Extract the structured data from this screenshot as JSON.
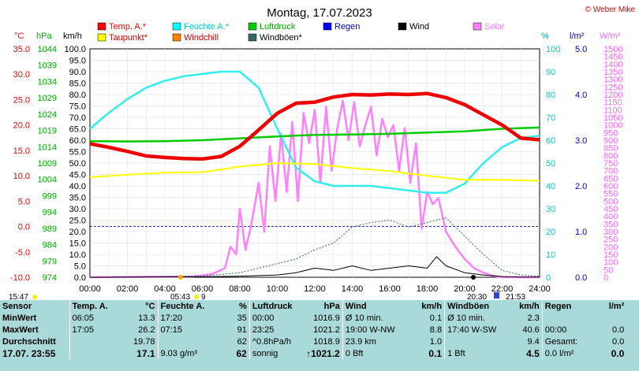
{
  "chart_data": {
    "type": "line",
    "title": "Montag, 17.07.2023",
    "credit": "© Weber Mike",
    "x_ticks": [
      "00:00",
      "02:00",
      "04:00",
      "06:00",
      "08:00",
      "10:00",
      "12:00",
      "14:00",
      "16:00",
      "18:00",
      "20:00",
      "22:00",
      "24:00"
    ],
    "axes": {
      "temp": {
        "label": "°C",
        "range": [
          -10,
          35
        ],
        "ticks": [
          "35.0",
          "30.0",
          "25.0",
          "20.0",
          "15.0",
          "10.0",
          "5.0",
          "0.0",
          "-5.0",
          "-10.0"
        ],
        "color": "#ff0000"
      },
      "pressure": {
        "label": "hPa",
        "range": [
          974,
          1046
        ],
        "ticks": [
          "1044",
          "1039",
          "1034",
          "1029",
          "1024",
          "1019",
          "1014",
          "1009",
          "1004",
          "999",
          "994",
          "989",
          "984",
          "979",
          "974"
        ],
        "color": "#00aa00"
      },
      "wind": {
        "label": "km/h",
        "range": [
          0,
          100
        ],
        "ticks": [
          "100.0",
          "95.0",
          "90.0",
          "85.0",
          "80.0",
          "75.0",
          "70.0",
          "65.0",
          "60.0",
          "55.0",
          "50.0",
          "45.0",
          "40.0",
          "35.0",
          "30.0",
          "25.0",
          "20.0",
          "15.0",
          "10.0",
          "5.0",
          "0.0"
        ],
        "color": "#000000"
      },
      "humidity": {
        "label": "%",
        "range": [
          0,
          100
        ],
        "ticks": [
          "100",
          "90",
          "80",
          "70",
          "60",
          "50",
          "40",
          "30",
          "20",
          "10",
          "0"
        ],
        "color": "#00cccc"
      },
      "rain": {
        "label": "l/m²",
        "range": [
          0,
          5
        ],
        "ticks": [
          "5.0",
          "4.0",
          "3.0",
          "2.0",
          "1.0",
          "0.0"
        ],
        "color": "#0000cc"
      },
      "solar": {
        "label": "W/m²",
        "range": [
          0,
          1500
        ],
        "ticks": [
          "1500",
          "1450",
          "1400",
          "1350",
          "1300",
          "1250",
          "1200",
          "1150",
          "1100",
          "1050",
          "1000",
          "950",
          "900",
          "850",
          "800",
          "750",
          "700",
          "650",
          "600",
          "550",
          "500",
          "450",
          "400",
          "350",
          "300",
          "250",
          "200",
          "150",
          "100",
          "50",
          "0"
        ],
        "color": "#ff66ff"
      }
    },
    "legend": [
      {
        "name": "Temp. A.*",
        "color": "#ff0000"
      },
      {
        "name": "Feuchte A.*",
        "color": "#00ffff"
      },
      {
        "name": "Luftdruck",
        "color": "#00cc00"
      },
      {
        "name": "Regen",
        "color": "#0000ff"
      },
      {
        "name": "Wind",
        "color": "#000000"
      },
      {
        "name": "Solar",
        "color": "#ff80ff"
      },
      {
        "name": "Taupunkt*",
        "color": "#ffff00"
      },
      {
        "name": "Windchill",
        "color": "#ff8000"
      },
      {
        "name": "Windböen*",
        "color": "#336666"
      }
    ],
    "series": [
      {
        "name": "Temp. A.*",
        "axis": "temp",
        "color": "#ee0000",
        "x": [
          0,
          1,
          2,
          3,
          4,
          5,
          6,
          7,
          8,
          9,
          10,
          11,
          12,
          13,
          14,
          15,
          16,
          17,
          18,
          19,
          20,
          21,
          22,
          23,
          24
        ],
        "y": [
          16.3,
          15.6,
          14.8,
          13.9,
          13.6,
          13.4,
          13.3,
          13.8,
          15.8,
          19.0,
          22.3,
          24.3,
          24.5,
          25.5,
          26.0,
          25.9,
          26.1,
          26.0,
          26.2,
          25.4,
          24.0,
          22.0,
          20.0,
          17.4,
          17.1
        ]
      },
      {
        "name": "Feuchte A.*",
        "axis": "humidity",
        "color": "#33eeee",
        "x": [
          0,
          1,
          2,
          3,
          4,
          5,
          6,
          7,
          8,
          9,
          10,
          11,
          12,
          13,
          14,
          15,
          16,
          17,
          18,
          19,
          20,
          21,
          22,
          23,
          24
        ],
        "y": [
          65,
          72,
          78,
          83,
          86,
          88,
          89,
          90,
          90,
          83,
          65,
          48,
          42,
          40,
          40,
          40,
          39,
          38,
          37,
          37,
          41,
          50,
          57,
          61,
          62
        ]
      },
      {
        "name": "Luftdruck",
        "axis": "pressure",
        "color": "#00cc00",
        "x": [
          0,
          2,
          4,
          6,
          8,
          10,
          12,
          14,
          16,
          18,
          20,
          22,
          24
        ],
        "y": [
          1016.9,
          1016.8,
          1016.9,
          1017.2,
          1017.8,
          1018.4,
          1018.9,
          1019.0,
          1019.2,
          1019.6,
          1020.0,
          1020.8,
          1021.2
        ]
      },
      {
        "name": "Taupunkt*",
        "axis": "temp",
        "color": "#ffff00",
        "x": [
          0,
          2,
          4,
          6,
          8,
          10,
          12,
          14,
          16,
          18,
          20,
          22,
          24
        ],
        "y": [
          9.7,
          10.2,
          10.6,
          10.7,
          11.8,
          12.5,
          12.3,
          11.5,
          10.9,
          10.0,
          9.2,
          9.2,
          9.0
        ]
      },
      {
        "name": "Wind",
        "axis": "wind",
        "color": "#000000",
        "x": [
          0,
          6,
          8,
          10,
          11,
          12,
          13,
          14,
          15,
          16,
          17,
          18,
          18.5,
          19,
          20,
          21,
          22,
          23,
          24
        ],
        "y": [
          0,
          0.2,
          0.5,
          1.0,
          2.0,
          4.0,
          3.0,
          5.0,
          3.0,
          4.0,
          5.0,
          4.0,
          9.0,
          5.0,
          2.0,
          1.0,
          0.3,
          0.1,
          0.1
        ]
      },
      {
        "name": "Windböen*",
        "axis": "wind",
        "color": "#336666",
        "x": [
          0,
          6,
          8,
          10,
          11,
          12,
          13,
          14,
          15,
          16,
          17,
          18,
          19,
          20,
          21,
          22,
          23,
          24
        ],
        "y": [
          0,
          0.5,
          2.0,
          6.0,
          8.0,
          12.0,
          15.0,
          22.0,
          24.0,
          25.0,
          22.0,
          24.0,
          26.0,
          18.0,
          10.0,
          3.0,
          1.0,
          0.5
        ]
      },
      {
        "name": "Solar",
        "axis": "solar",
        "color": "#ff80ff",
        "x": [
          0,
          5.5,
          6.5,
          7.2,
          7.5,
          7.8,
          8.0,
          8.3,
          8.6,
          9.0,
          9.3,
          9.6,
          9.9,
          10.2,
          10.5,
          10.8,
          11.1,
          11.4,
          11.7,
          12.0,
          12.3,
          12.6,
          12.9,
          13.2,
          13.5,
          13.8,
          14.1,
          14.4,
          14.7,
          15.0,
          15.3,
          15.6,
          15.9,
          16.2,
          16.5,
          16.8,
          17.1,
          17.4,
          17.7,
          18.0,
          18.3,
          18.6,
          19.0,
          19.5,
          20.0,
          20.5,
          21.0,
          21.5,
          22.0,
          24.0
        ],
        "y": [
          0,
          5,
          20,
          60,
          200,
          150,
          450,
          180,
          340,
          620,
          300,
          860,
          500,
          940,
          560,
          1020,
          500,
          1080,
          880,
          1100,
          620,
          1120,
          700,
          980,
          1160,
          900,
          1150,
          860,
          1000,
          1120,
          800,
          1040,
          920,
          1000,
          700,
          980,
          620,
          880,
          320,
          560,
          480,
          520,
          300,
          200,
          120,
          60,
          30,
          10,
          0,
          0
        ]
      }
    ],
    "summary_table": {
      "columns": [
        {
          "header": "Sensor",
          "unit": ""
        },
        {
          "header": "Temp. A.",
          "unit": "°C"
        },
        {
          "header": "Feuchte A.",
          "unit": "%"
        },
        {
          "header": "Luftdruck",
          "unit": "hPa"
        },
        {
          "header": "Wind",
          "unit": "km/h"
        },
        {
          "header": "Windböen",
          "unit": "km/h"
        },
        {
          "header": "Regen",
          "unit": "l/m²"
        }
      ],
      "rows": [
        {
          "label": "MinWert",
          "temp": [
            "06:05",
            "13.3"
          ],
          "hum": [
            "17:20",
            "35"
          ],
          "press": [
            "00:00",
            "1016.9"
          ],
          "wind": [
            "Ø 10 min.",
            "0.1"
          ],
          "gust": [
            "Ø 10 min.",
            "2.3"
          ],
          "rain": [
            "",
            ""
          ]
        },
        {
          "label": "MaxWert",
          "temp": [
            "17:05",
            "26.2"
          ],
          "hum": [
            "07:15",
            "91"
          ],
          "press": [
            "23:25",
            "1021.2"
          ],
          "wind": [
            "19:00  W-NW",
            "8.8"
          ],
          "gust": [
            "17:40  W-SW",
            "40.6"
          ],
          "rain": [
            "00:00",
            "0.0"
          ]
        },
        {
          "label": "Durchschnitt",
          "temp": [
            "",
            "19.78"
          ],
          "hum": [
            "",
            "62"
          ],
          "press": [
            "^0.8hPa/h",
            "1018.9"
          ],
          "wind": [
            "23.9 km",
            "1.0"
          ],
          "gust": [
            "",
            "9.4"
          ],
          "rain": [
            "Gesamt:",
            "0.0"
          ]
        },
        {
          "label": "17.07.  23:55",
          "temp": [
            "",
            "17.1"
          ],
          "hum": [
            "9.03 g/m³",
            "62"
          ],
          "press": [
            "sonnig",
            "↑1021.2"
          ],
          "wind": [
            "0 Bft",
            "0.1"
          ],
          "gust": [
            "1 Bft",
            "4.5"
          ],
          "rain": [
            "0.0 l/m²",
            "0.0"
          ]
        }
      ]
    },
    "sun_markers": {
      "sunrise": "05:43",
      "sunrise_icon": "9",
      "sunset": "20:30",
      "moon": "21:53",
      "left_label": "15:47"
    }
  }
}
